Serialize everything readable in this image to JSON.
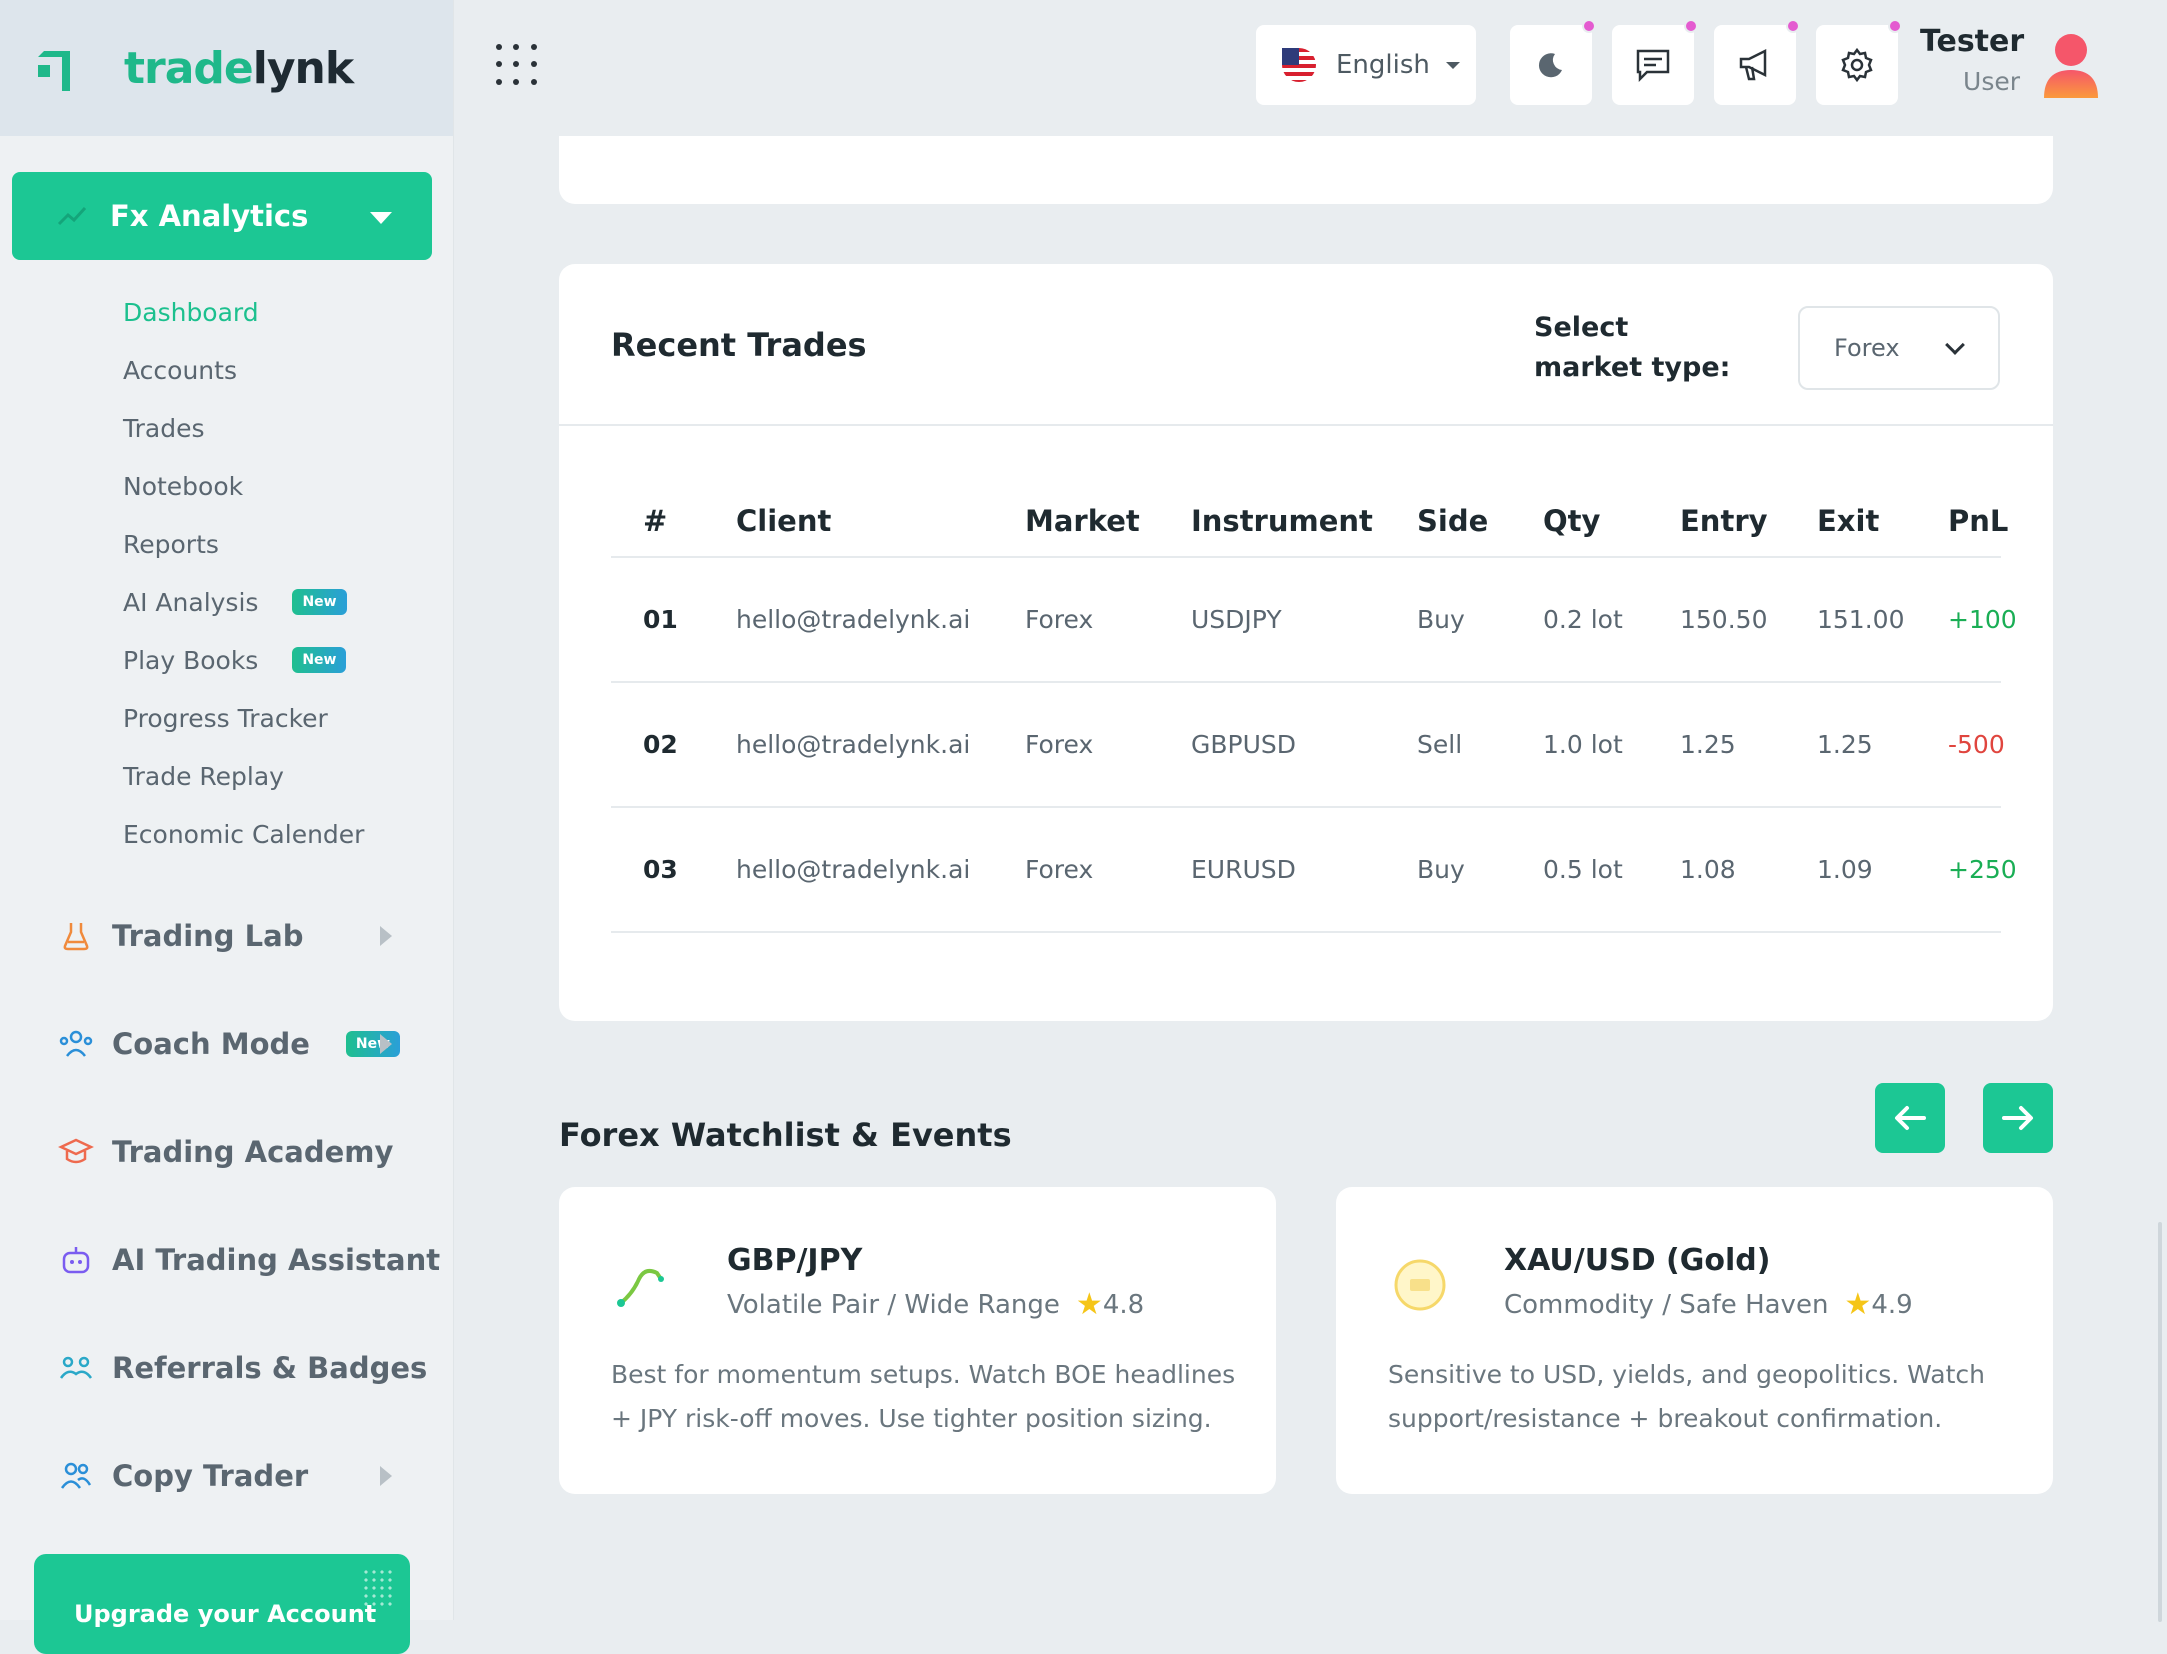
{
  "brand": {
    "part1": "trade",
    "part2": "lynk"
  },
  "header": {
    "language": "English",
    "user_name": "Tester",
    "user_role": "User"
  },
  "sidebar": {
    "active_group": "Fx Analytics",
    "sub_items": [
      {
        "label": "Dashboard",
        "badge": ""
      },
      {
        "label": "Accounts",
        "badge": ""
      },
      {
        "label": "Trades",
        "badge": ""
      },
      {
        "label": "Notebook",
        "badge": ""
      },
      {
        "label": "Reports",
        "badge": ""
      },
      {
        "label": "AI Analysis",
        "badge": "New"
      },
      {
        "label": "Play Books",
        "badge": "New"
      },
      {
        "label": "Progress Tracker",
        "badge": ""
      },
      {
        "label": "Trade Replay",
        "badge": ""
      },
      {
        "label": "Economic Calender",
        "badge": ""
      }
    ],
    "groups": [
      {
        "label": "Trading Lab",
        "icon": "flask-icon",
        "badge": ""
      },
      {
        "label": "Coach Mode",
        "icon": "coach-icon",
        "badge": "New"
      },
      {
        "label": "Trading Academy",
        "icon": "graduation-cap-icon",
        "badge": ""
      },
      {
        "label": "AI Trading Assistant",
        "icon": "robot-icon",
        "badge": ""
      },
      {
        "label": "Referrals & Badges",
        "icon": "referral-icon",
        "badge": ""
      },
      {
        "label": "Copy Trader",
        "icon": "users-icon",
        "badge": ""
      }
    ],
    "upgrade_label": "Upgrade your Account"
  },
  "recent_trades": {
    "title": "Recent Trades",
    "market_label": "Select market type:",
    "market_value": "Forex",
    "columns": [
      "#",
      "Client",
      "Market",
      "Instrument",
      "Side",
      "Qty",
      "Entry",
      "Exit",
      "PnL"
    ],
    "rows": [
      {
        "num": "01",
        "client": "hello@tradelynk.ai",
        "market": "Forex",
        "instrument": "USDJPY",
        "side": "Buy",
        "qty": "0.2 lot",
        "entry": "150.50",
        "exit": "151.00",
        "pnl": "+100"
      },
      {
        "num": "02",
        "client": "hello@tradelynk.ai",
        "market": "Forex",
        "instrument": "GBPUSD",
        "side": "Sell",
        "qty": "1.0 lot",
        "entry": "1.25",
        "exit": "1.25",
        "pnl": "-500"
      },
      {
        "num": "03",
        "client": "hello@tradelynk.ai",
        "market": "Forex",
        "instrument": "EURUSD",
        "side": "Buy",
        "qty": "0.5 lot",
        "entry": "1.08",
        "exit": "1.09",
        "pnl": "+250"
      }
    ]
  },
  "watchlist": {
    "title": "Forex Watchlist & Events",
    "cards": [
      {
        "symbol": "GBP/JPY",
        "subtitle": "Volatile Pair / Wide Range",
        "rating": "4.8",
        "description": "Best for momentum setups. Watch BOE headlines + JPY risk-off moves. Use tighter position sizing."
      },
      {
        "symbol": "XAU/USD (Gold)",
        "subtitle": "Commodity / Safe Haven",
        "rating": "4.9",
        "description": "Sensitive to USD, yields, and geopolitics. Watch support/resistance + breakout confirmation."
      }
    ]
  },
  "colors": {
    "accent": "#1cc794",
    "positive": "#1aae55",
    "negative": "#e0453e",
    "notification": "#e45bd0"
  }
}
